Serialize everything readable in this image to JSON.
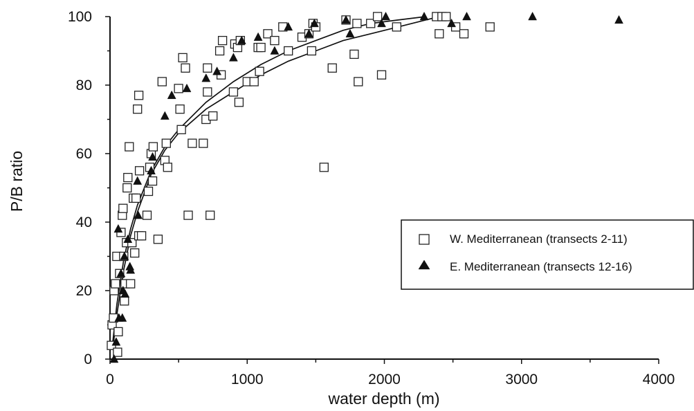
{
  "chart_data": {
    "type": "scatter",
    "xlabel": "water depth (m)",
    "ylabel": "P/B ratio",
    "xlim": [
      0,
      4000
    ],
    "ylim": [
      0,
      100
    ],
    "x_ticks": [
      0,
      1000,
      2000,
      3000,
      4000
    ],
    "y_ticks": [
      0,
      20,
      40,
      60,
      80,
      100
    ],
    "legend_position": "right",
    "series": [
      {
        "name": "W. Mediterranean (transects 2-11)",
        "marker": "open-square",
        "points": [
          [
            10,
            4
          ],
          [
            15,
            10
          ],
          [
            25,
            12
          ],
          [
            30,
            20
          ],
          [
            40,
            22
          ],
          [
            50,
            30
          ],
          [
            55,
            2
          ],
          [
            60,
            8
          ],
          [
            70,
            25
          ],
          [
            80,
            37
          ],
          [
            90,
            42
          ],
          [
            95,
            44
          ],
          [
            100,
            30
          ],
          [
            105,
            17
          ],
          [
            110,
            22
          ],
          [
            120,
            34
          ],
          [
            125,
            50
          ],
          [
            130,
            53
          ],
          [
            140,
            62
          ],
          [
            150,
            22
          ],
          [
            160,
            34
          ],
          [
            170,
            47
          ],
          [
            180,
            31
          ],
          [
            190,
            47
          ],
          [
            200,
            73
          ],
          [
            210,
            77
          ],
          [
            210,
            36
          ],
          [
            215,
            55
          ],
          [
            230,
            36
          ],
          [
            270,
            42
          ],
          [
            280,
            49
          ],
          [
            290,
            56
          ],
          [
            300,
            60
          ],
          [
            310,
            52
          ],
          [
            315,
            62
          ],
          [
            350,
            35
          ],
          [
            380,
            81
          ],
          [
            400,
            58
          ],
          [
            410,
            63
          ],
          [
            420,
            56
          ],
          [
            500,
            79
          ],
          [
            510,
            73
          ],
          [
            520,
            67
          ],
          [
            530,
            88
          ],
          [
            550,
            85
          ],
          [
            570,
            42
          ],
          [
            600,
            63
          ],
          [
            680,
            63
          ],
          [
            700,
            70
          ],
          [
            710,
            78
          ],
          [
            710,
            85
          ],
          [
            730,
            42
          ],
          [
            750,
            71
          ],
          [
            800,
            90
          ],
          [
            810,
            83
          ],
          [
            820,
            93
          ],
          [
            900,
            78
          ],
          [
            910,
            92
          ],
          [
            930,
            91
          ],
          [
            940,
            75
          ],
          [
            950,
            93
          ],
          [
            1000,
            81
          ],
          [
            1050,
            81
          ],
          [
            1080,
            91
          ],
          [
            1090,
            84
          ],
          [
            1100,
            91
          ],
          [
            1150,
            95
          ],
          [
            1200,
            93
          ],
          [
            1260,
            97
          ],
          [
            1300,
            90
          ],
          [
            1400,
            94
          ],
          [
            1450,
            95
          ],
          [
            1470,
            90
          ],
          [
            1480,
            98
          ],
          [
            1500,
            97
          ],
          [
            1560,
            56
          ],
          [
            1620,
            85
          ],
          [
            1720,
            99
          ],
          [
            1780,
            89
          ],
          [
            1800,
            98
          ],
          [
            1810,
            81
          ],
          [
            1900,
            98
          ],
          [
            1950,
            100
          ],
          [
            1980,
            83
          ],
          [
            2090,
            97
          ],
          [
            2380,
            100
          ],
          [
            2400,
            95
          ],
          [
            2420,
            100
          ],
          [
            2450,
            100
          ],
          [
            2520,
            97
          ],
          [
            2580,
            95
          ],
          [
            2770,
            97
          ]
        ]
      },
      {
        "name": "E. Mediterranean (transects 12-16)",
        "marker": "filled-triangle",
        "points": [
          [
            30,
            0
          ],
          [
            45,
            5
          ],
          [
            60,
            38
          ],
          [
            65,
            12
          ],
          [
            80,
            25
          ],
          [
            90,
            12
          ],
          [
            95,
            20
          ],
          [
            105,
            30
          ],
          [
            110,
            19
          ],
          [
            130,
            35
          ],
          [
            145,
            27
          ],
          [
            150,
            26
          ],
          [
            200,
            52
          ],
          [
            205,
            42
          ],
          [
            300,
            55
          ],
          [
            310,
            59
          ],
          [
            400,
            71
          ],
          [
            450,
            77
          ],
          [
            560,
            79
          ],
          [
            700,
            82
          ],
          [
            780,
            84
          ],
          [
            900,
            88
          ],
          [
            960,
            93
          ],
          [
            1080,
            94
          ],
          [
            1200,
            90
          ],
          [
            1300,
            97
          ],
          [
            1450,
            95
          ],
          [
            1490,
            98
          ],
          [
            1720,
            99
          ],
          [
            1750,
            95
          ],
          [
            1980,
            98
          ],
          [
            2010,
            100
          ],
          [
            2290,
            100
          ],
          [
            2490,
            98
          ],
          [
            2600,
            100
          ],
          [
            3080,
            100
          ],
          [
            3710,
            99
          ]
        ]
      }
    ],
    "fit_curves": [
      {
        "points": [
          [
            20,
            5
          ],
          [
            50,
            16
          ],
          [
            100,
            29
          ],
          [
            150,
            38
          ],
          [
            200,
            45
          ],
          [
            300,
            55
          ],
          [
            400,
            62
          ],
          [
            500,
            67
          ],
          [
            700,
            75
          ],
          [
            900,
            81
          ],
          [
            1100,
            86
          ],
          [
            1300,
            90
          ],
          [
            1500,
            93
          ],
          [
            1700,
            96
          ],
          [
            1900,
            98
          ],
          [
            2100,
            99
          ],
          [
            2300,
            100
          ]
        ]
      },
      {
        "points": [
          [
            20,
            3
          ],
          [
            50,
            13
          ],
          [
            100,
            26
          ],
          [
            150,
            36
          ],
          [
            200,
            43
          ],
          [
            300,
            54
          ],
          [
            400,
            61
          ],
          [
            500,
            66
          ],
          [
            700,
            73
          ],
          [
            900,
            78
          ],
          [
            1100,
            83
          ],
          [
            1300,
            87
          ],
          [
            1500,
            90
          ],
          [
            1700,
            93
          ],
          [
            1900,
            95
          ],
          [
            2100,
            97
          ],
          [
            2300,
            99
          ],
          [
            2400,
            100
          ]
        ]
      }
    ]
  }
}
